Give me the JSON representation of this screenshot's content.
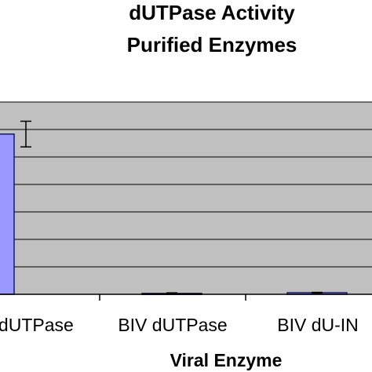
{
  "chart_data": {
    "type": "bar",
    "title": [
      "dUTPase Activity",
      "Purified Enzymes"
    ],
    "xlabel": "Viral Enzyme",
    "ylabel": "",
    "categories": [
      "V dUTPase",
      "BIV dUTPase",
      "BIV dU-IN"
    ],
    "values": [
      100,
      0.6,
      1.0
    ],
    "error": [
      8,
      0.3,
      0.2
    ],
    "ylim": [
      0,
      120
    ],
    "grid": true,
    "colors": {
      "bar_fill": "#9999ff",
      "bar_stroke": "#1a1a66",
      "plot_background": "#c0c0c0",
      "gridline": "#000000"
    }
  }
}
